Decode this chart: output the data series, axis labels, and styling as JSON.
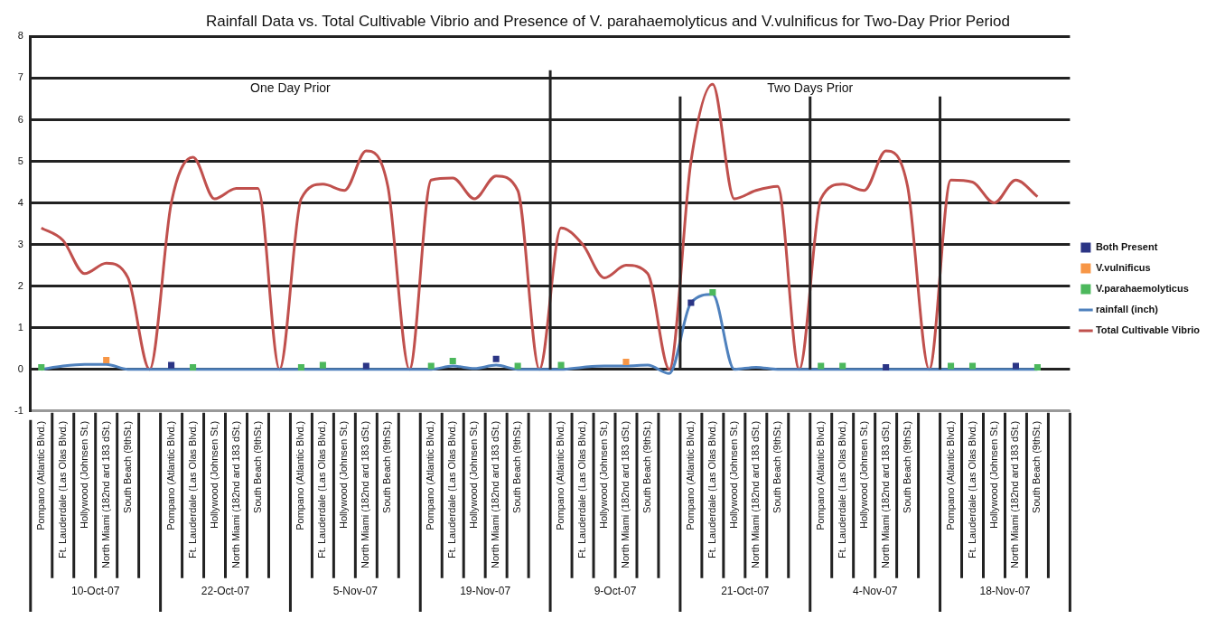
{
  "chart_data": {
    "type": "line",
    "title": "Rainfall Data vs. Total Cultivable Vibrio and Presence of V. parahaemolyticus and V.vulnificus for Two-Day Prior Period",
    "annotations": [
      "One Day Prior",
      "Two Days Prior",
      "10-Oct-07",
      "22-Oct-07",
      "5-Nov-07",
      "19-Nov-07",
      "9-Oct-07",
      "21-Oct-07",
      "4-Nov-07",
      "18-Nov-07"
    ],
    "categories": [
      "Pompano (Atlantic Blvd.)",
      "Ft. Lauderdale (Las Olas Blvd.)",
      "Hollywood (Johnsen St.)",
      "North Miami (182nd ard 183 dSt.)",
      "South Beach (9thSt.)",
      null,
      "Pompano (Atlantic Blvd.)",
      "Ft. Lauderdale (Las Olas Blvd.)",
      "Hollywood (Johnsen St.)",
      "North Miami (182nd ard 183 dSt.)",
      "South Beach (9thSt.)",
      null,
      "Pompano (Atlantic Blvd.)",
      "Ft. Lauderdale (Las Olas Blvd.)",
      "Hollywood (Johnsen St.)",
      "North Miami (182nd ard 183 dSt.)",
      "South Beach (9thSt.)",
      null,
      "Pompano (Atlantic Blvd.)",
      "Ft. Lauderdale (Las Olas Blvd.)",
      "Hollywood (Johnsen St.)",
      "North Miami (182nd ard 183 dSt.)",
      "South Beach (9thSt.)",
      null,
      "Pompano (Atlantic Blvd.)",
      "Ft. Lauderdale (Las Olas Blvd.)",
      "Hollywood (Johnsen St.)",
      "North Miami (182nd ard 183 dSt.)",
      "South Beach (9thSt.)",
      null,
      "Pompano (Atlantic Blvd.)",
      "Ft. Lauderdale (Las Olas Blvd.)",
      "Hollywood (Johnsen St.)",
      "North Miami (182nd ard 183 dSt.)",
      "South Beach (9thSt.)",
      null,
      "Pompano (Atlantic Blvd.)",
      "Ft. Lauderdale (Las Olas Blvd.)",
      "Hollywood (Johnsen St.)",
      "North Miami (182nd ard 183 dSt.)",
      "South Beach (9thSt.)",
      null,
      "Pompano (Atlantic Blvd.)",
      "Ft. Lauderdale (Las Olas Blvd.)",
      "Hollywood (Johnsen St.)",
      "North Miami (182nd ard 183 dSt.)",
      "South Beach (9thSt.)",
      null
    ],
    "ylim": [
      -1,
      8
    ],
    "yticks": [
      -1,
      0,
      1,
      2,
      3,
      4,
      5,
      6,
      7,
      8
    ],
    "grid": "y",
    "legend": "right",
    "series": [
      {
        "name": "Total Cultivable Vibrio",
        "color": "#c0504d",
        "marker": "none",
        "values": [
          3.4,
          3.1,
          2.3,
          2.55,
          2.2,
          0,
          4.0,
          5.1,
          4.1,
          4.35,
          4.35,
          0,
          4.1,
          4.45,
          4.3,
          5.25,
          4.4,
          0,
          4.55,
          4.6,
          4.1,
          4.65,
          4.3,
          0,
          3.4,
          3.0,
          2.2,
          2.5,
          2.3,
          0,
          5.0,
          6.85,
          4.1,
          4.3,
          4.4,
          0,
          4.1,
          4.45,
          4.3,
          5.25,
          4.4,
          0,
          4.55,
          4.5,
          4.0,
          4.55,
          4.15,
          null
        ]
      },
      {
        "name": "rainfall (inch)",
        "color": "#4f81bd",
        "marker": "none",
        "values": [
          0,
          0.08,
          0.12,
          0.12,
          0,
          0,
          0,
          0,
          0,
          0,
          0,
          0,
          0,
          0,
          0,
          0,
          0,
          0,
          0,
          0.08,
          0.02,
          0.1,
          0,
          0,
          0,
          0.05,
          0.08,
          0.08,
          0.1,
          -0.1,
          1.6,
          1.8,
          0,
          0.05,
          0,
          0,
          0,
          0,
          0,
          0,
          0,
          0,
          0,
          0,
          0,
          0,
          0,
          null
        ]
      },
      {
        "name": "V.parahaemolyticus",
        "color": "#4cb85c",
        "type": "scatter",
        "marker": "square",
        "values": [
          0.05,
          null,
          null,
          null,
          null,
          null,
          null,
          0.05,
          null,
          null,
          null,
          null,
          0.05,
          0.1,
          null,
          null,
          null,
          null,
          0.08,
          0.2,
          null,
          null,
          0.08,
          null,
          0.1,
          null,
          null,
          null,
          null,
          null,
          null,
          1.85,
          null,
          null,
          null,
          null,
          0.08,
          0.08,
          null,
          null,
          null,
          null,
          0.08,
          0.08,
          null,
          null,
          0.05,
          null
        ]
      },
      {
        "name": "V.vulnificus",
        "color": "#f79646",
        "type": "scatter",
        "marker": "square",
        "values": [
          null,
          null,
          null,
          0.22,
          null,
          null,
          null,
          null,
          null,
          null,
          null,
          null,
          null,
          null,
          null,
          null,
          null,
          null,
          null,
          null,
          null,
          null,
          null,
          null,
          null,
          null,
          null,
          0.18,
          null,
          null,
          null,
          null,
          null,
          null,
          null,
          null,
          null,
          null,
          null,
          null,
          null,
          null,
          null,
          null,
          null,
          null,
          null,
          null
        ]
      },
      {
        "name": "Both Present",
        "color": "#2b3585",
        "type": "scatter",
        "marker": "square",
        "values": [
          null,
          null,
          null,
          null,
          null,
          null,
          0.1,
          null,
          null,
          null,
          null,
          null,
          null,
          null,
          null,
          0.08,
          null,
          null,
          null,
          null,
          null,
          0.25,
          null,
          null,
          null,
          null,
          null,
          null,
          null,
          null,
          1.6,
          null,
          null,
          null,
          null,
          null,
          null,
          null,
          null,
          0.05,
          null,
          null,
          null,
          null,
          null,
          0.08,
          null,
          null
        ]
      }
    ]
  }
}
